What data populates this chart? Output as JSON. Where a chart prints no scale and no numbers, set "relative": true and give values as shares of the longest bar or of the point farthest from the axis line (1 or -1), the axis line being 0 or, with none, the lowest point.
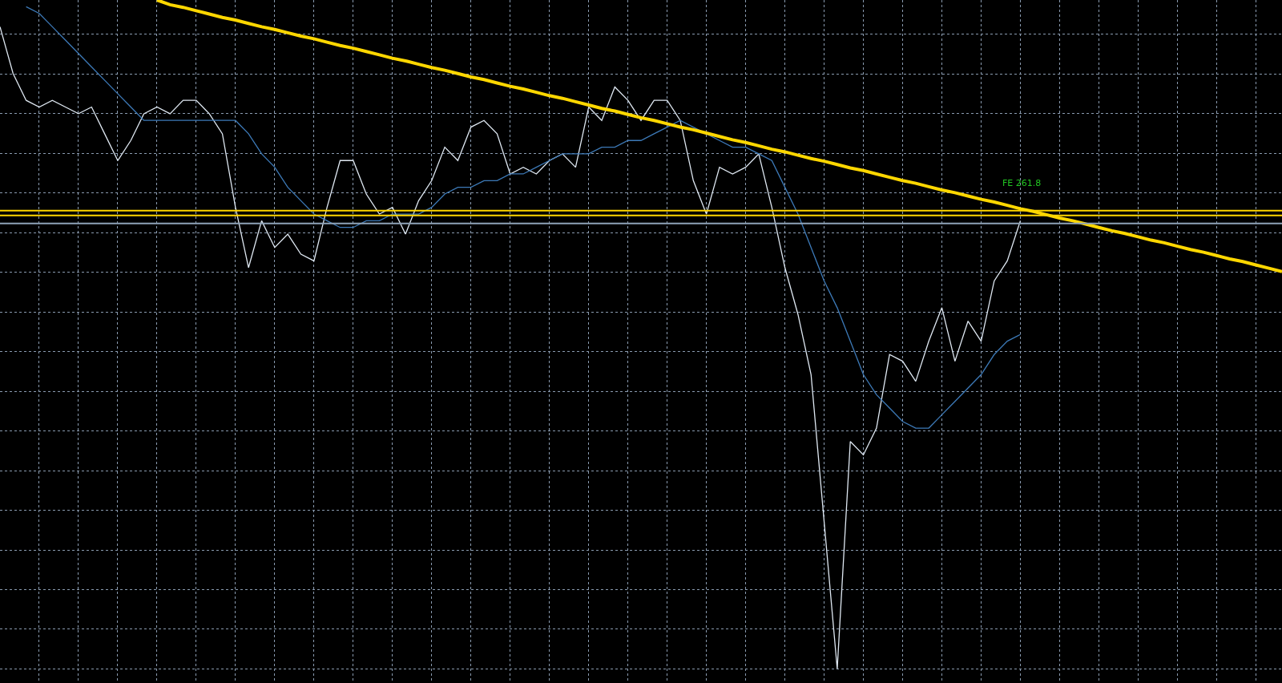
{
  "chart_data": {
    "type": "line",
    "relative": true,
    "grid": true,
    "categories": [
      null,
      null,
      null,
      null,
      null,
      null,
      null,
      null,
      null,
      null,
      null,
      null,
      null,
      null,
      null,
      null,
      null,
      null,
      null,
      null,
      null,
      null,
      null,
      null,
      null,
      null,
      null,
      null,
      null,
      null,
      null,
      null,
      null,
      null,
      null,
      null,
      null,
      null,
      null,
      null,
      null,
      null,
      null,
      null,
      null,
      null,
      null,
      null,
      null,
      null,
      null,
      null,
      null,
      null,
      null,
      null,
      null,
      null,
      null,
      null,
      null,
      null,
      null,
      null,
      null,
      null,
      null,
      null,
      null,
      null,
      null,
      null,
      null,
      null,
      null,
      null,
      null,
      null,
      null,
      null,
      null,
      null,
      null,
      null,
      null,
      null,
      null,
      null,
      null,
      null,
      null,
      null,
      null,
      null,
      null,
      null,
      null,
      null,
      null
    ],
    "series": [
      {
        "color": "#dfe8f2",
        "values": [
          0.96,
          0.89,
          0.85,
          0.84,
          0.85,
          0.84,
          0.83,
          0.84,
          0.8,
          0.76,
          0.79,
          0.83,
          0.84,
          0.83,
          0.85,
          0.85,
          0.83,
          0.8,
          0.69,
          0.6,
          0.67,
          0.63,
          0.65,
          0.62,
          0.61,
          0.69,
          0.76,
          0.76,
          0.71,
          0.68,
          0.69,
          0.65,
          0.7,
          0.73,
          0.78,
          0.76,
          0.81,
          0.82,
          0.8,
          0.74,
          0.75,
          0.74,
          0.76,
          0.77,
          0.75,
          0.84,
          0.82,
          0.87,
          0.85,
          0.82,
          0.85,
          0.85,
          0.82,
          0.73,
          0.68,
          0.75,
          0.74,
          0.75,
          0.77,
          0.69,
          0.6,
          0.53,
          0.44,
          0.22,
          0,
          0.34,
          0.32,
          0.36,
          0.47,
          0.46,
          0.43,
          0.49,
          0.54,
          0.46,
          0.52,
          0.49,
          0.58,
          0.61,
          0.67,
          null,
          null,
          null,
          null,
          null,
          null,
          null,
          null,
          null,
          null,
          null,
          null,
          null,
          null,
          null,
          null,
          null,
          null,
          null,
          null
        ]
      },
      {
        "color": "#3d7ab8",
        "values": [
          null,
          null,
          0.99,
          0.98,
          0.96,
          0.94,
          0.92,
          0.9,
          0.88,
          0.86,
          0.84,
          0.82,
          0.82,
          0.82,
          0.82,
          0.82,
          0.82,
          0.82,
          0.82,
          0.8,
          0.77,
          0.75,
          0.72,
          0.7,
          0.68,
          0.67,
          0.66,
          0.66,
          0.67,
          0.67,
          0.68,
          0.68,
          0.68,
          0.69,
          0.71,
          0.72,
          0.72,
          0.73,
          0.73,
          0.74,
          0.74,
          0.75,
          0.76,
          0.77,
          0.77,
          0.77,
          0.78,
          0.78,
          0.79,
          0.79,
          0.8,
          0.81,
          0.82,
          0.81,
          0.8,
          0.79,
          0.78,
          0.78,
          0.77,
          0.76,
          0.72,
          0.68,
          0.63,
          0.58,
          0.54,
          0.49,
          0.44,
          0.41,
          0.39,
          0.37,
          0.36,
          0.36,
          0.38,
          0.4,
          0.42,
          0.44,
          0.47,
          0.49,
          0.5,
          null,
          null,
          null,
          null,
          null,
          null,
          null,
          null,
          null,
          null,
          null,
          null,
          null,
          null,
          null,
          null,
          null,
          null,
          null,
          null
        ]
      },
      {
        "color": "#ffd700",
        "values": [
          null,
          null,
          null,
          null,
          null,
          null,
          null,
          null,
          null,
          null,
          null,
          null,
          1,
          0.993,
          0.989,
          0.984,
          0.979,
          0.974,
          0.97,
          0.965,
          0.96,
          0.956,
          0.951,
          0.946,
          0.942,
          0.937,
          0.932,
          0.928,
          0.923,
          0.918,
          0.913,
          0.909,
          0.904,
          0.899,
          0.895,
          0.89,
          0.885,
          0.881,
          0.876,
          0.871,
          0.867,
          0.862,
          0.857,
          0.853,
          0.848,
          0.843,
          0.838,
          0.834,
          0.829,
          0.824,
          0.82,
          0.815,
          0.81,
          0.806,
          0.801,
          0.796,
          0.791,
          0.787,
          0.782,
          0.777,
          0.773,
          0.768,
          0.763,
          0.759,
          0.754,
          0.749,
          0.745,
          0.74,
          0.735,
          0.73,
          0.726,
          0.721,
          0.716,
          0.712,
          0.707,
          0.702,
          0.698,
          0.693,
          0.688,
          0.684,
          0.679,
          0.674,
          0.67,
          0.665,
          0.66,
          0.655,
          0.651,
          0.646,
          0.641,
          0.637,
          0.632,
          0.627,
          0.623,
          0.618,
          0.613,
          0.609,
          0.604,
          0.599,
          0.594
        ]
      }
    ],
    "ref_lines": [
      {
        "axis": "y",
        "value": 0.685,
        "color": "#ffd700"
      },
      {
        "axis": "y",
        "value": 0.678,
        "color": "#ffd700"
      },
      {
        "axis": "y",
        "value": 0.666,
        "color": "#8fa3b8"
      }
    ],
    "annotations": [
      "FE 261.8"
    ]
  }
}
